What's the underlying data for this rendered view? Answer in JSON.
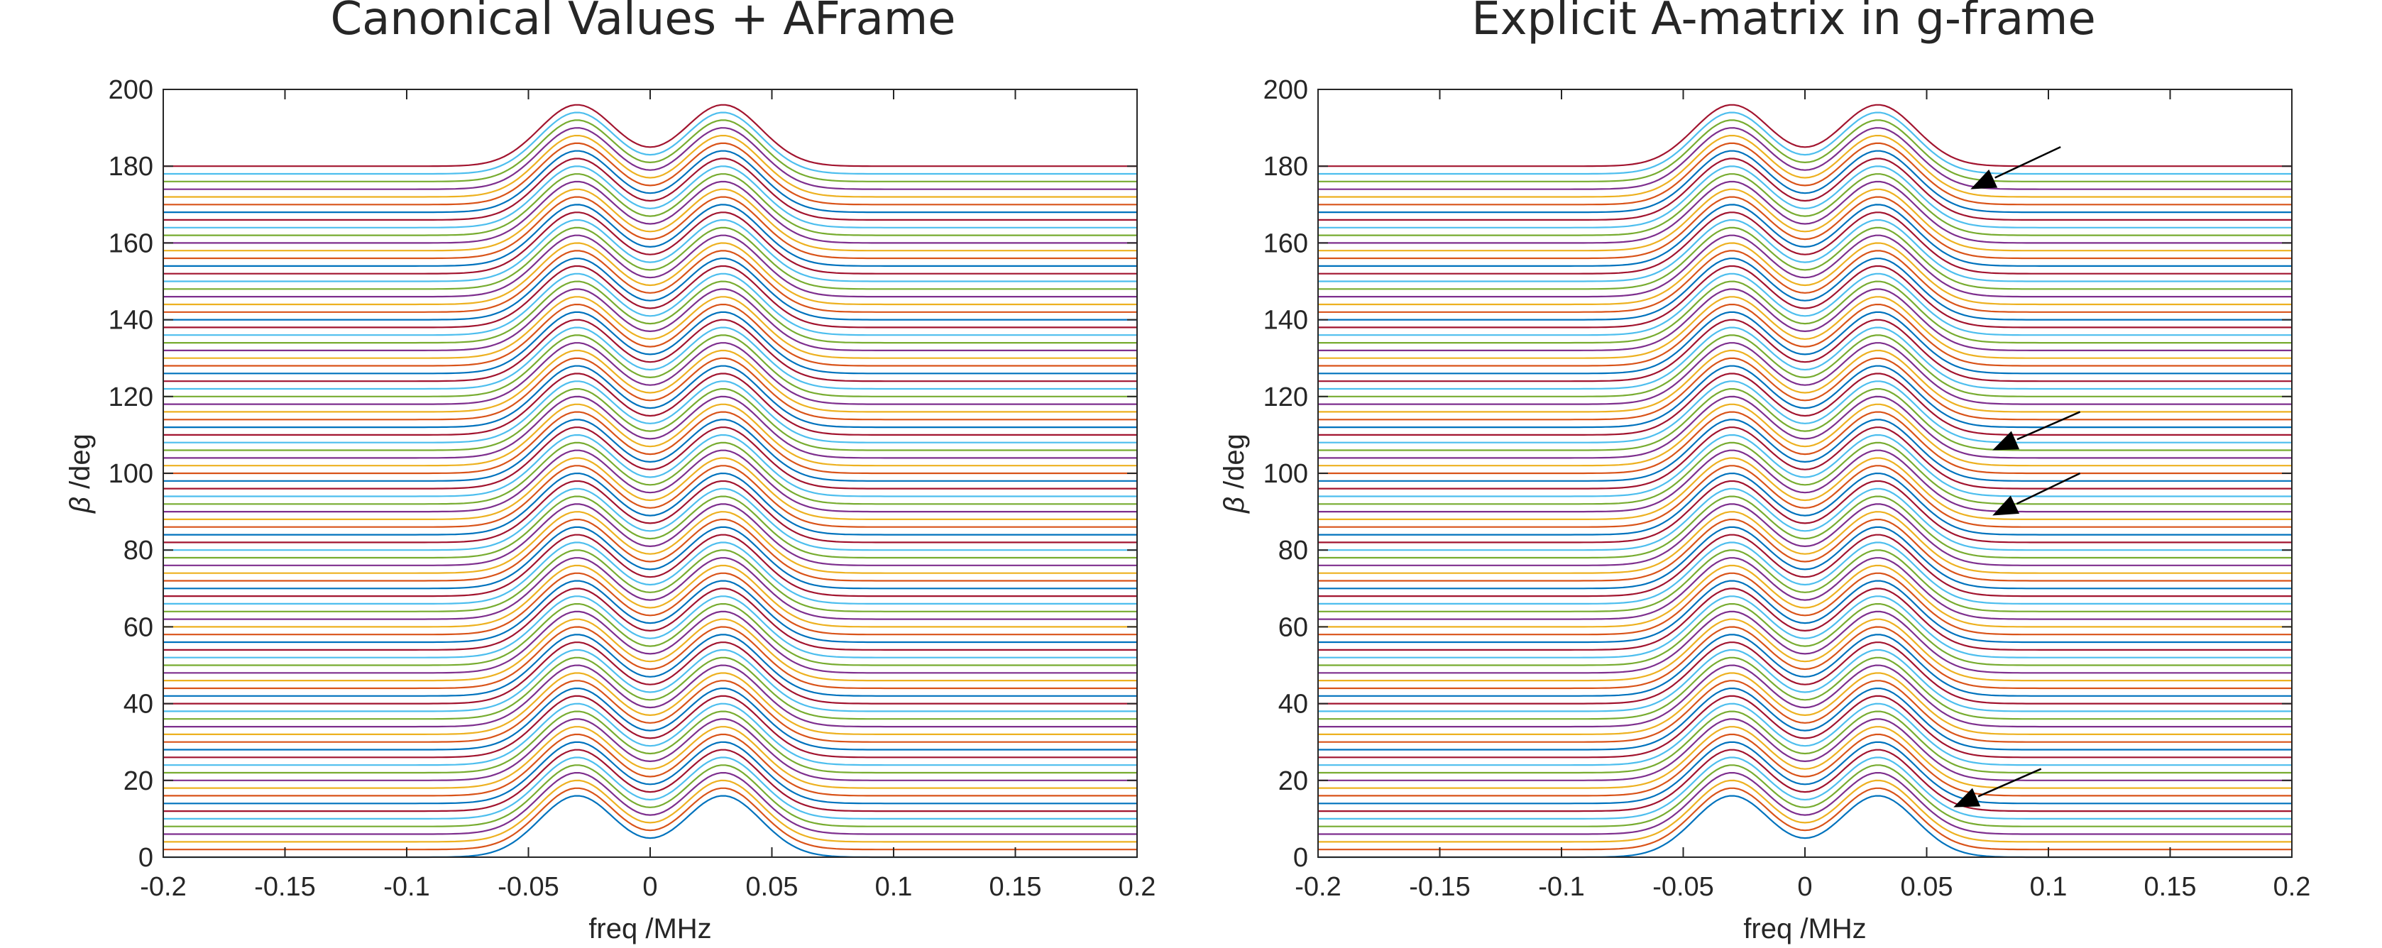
{
  "chart_data": [
    {
      "type": "line",
      "title": "Canonical Values + AFrame",
      "xlabel": "freq /MHz",
      "ylabel_symbol": "β",
      "ylabel_text": " /deg",
      "xlim": [
        -0.2,
        0.2
      ],
      "ylim": [
        0,
        200
      ],
      "xticks": [
        -0.2,
        -0.15,
        -0.1,
        -0.05,
        0,
        0.05,
        0.1,
        0.15,
        0.2
      ],
      "xtick_labels": [
        "-0.2",
        "-0.15",
        "-0.1",
        "-0.05",
        "0",
        "0.05",
        "0.1",
        "0.15",
        "0.2"
      ],
      "yticks": [
        0,
        20,
        40,
        60,
        80,
        100,
        120,
        140,
        160,
        180,
        200
      ],
      "ytick_labels": [
        "0",
        "20",
        "40",
        "60",
        "80",
        "100",
        "120",
        "140",
        "160",
        "180",
        "200"
      ],
      "series_description": "stacked spectra: one trace per beta from 0 to 180 deg in 2 deg steps, baseline offset equal to beta",
      "beta_start": 0,
      "beta_end": 180,
      "beta_step": 2,
      "peak_positions_MHz": [
        -0.03,
        0.03
      ],
      "peak_height": 16,
      "center_dip_height": 8.7,
      "peak_halfwidth_MHz": 0.022,
      "grid": false,
      "legend": "none"
    },
    {
      "type": "line",
      "title": "Explicit A-matrix in g-frame",
      "xlabel": "freq /MHz",
      "ylabel_symbol": "β",
      "ylabel_text": " /deg",
      "xlim": [
        -0.2,
        0.2
      ],
      "ylim": [
        0,
        200
      ],
      "xticks": [
        -0.2,
        -0.15,
        -0.1,
        -0.05,
        0,
        0.05,
        0.1,
        0.15,
        0.2
      ],
      "xtick_labels": [
        "-0.2",
        "-0.15",
        "-0.1",
        "-0.05",
        "0",
        "0.05",
        "0.1",
        "0.15",
        "0.2"
      ],
      "yticks": [
        0,
        20,
        40,
        60,
        80,
        100,
        120,
        140,
        160,
        180,
        200
      ],
      "ytick_labels": [
        "0",
        "20",
        "40",
        "60",
        "80",
        "100",
        "120",
        "140",
        "160",
        "180",
        "200"
      ],
      "series_description": "stacked spectra: one trace per beta from 0 to 180 deg in 2 deg steps, baseline offset equal to beta",
      "beta_start": 0,
      "beta_end": 180,
      "beta_step": 2,
      "peak_positions_MHz": [
        -0.03,
        0.03
      ],
      "peak_height": 16,
      "center_dip_height": 8.7,
      "peak_halfwidth_MHz": 0.022,
      "grid": false,
      "legend": "none",
      "annotations": [
        {
          "type": "arrow",
          "from": [
            0.105,
            185
          ],
          "to": [
            0.068,
            174
          ]
        },
        {
          "type": "arrow",
          "from": [
            0.113,
            116
          ],
          "to": [
            0.077,
            106
          ]
        },
        {
          "type": "arrow",
          "from": [
            0.113,
            100
          ],
          "to": [
            0.077,
            89
          ]
        },
        {
          "type": "arrow",
          "from": [
            0.097,
            23
          ],
          "to": [
            0.061,
            13
          ]
        }
      ]
    }
  ],
  "colors": {
    "series_cycle": [
      "#0072bd",
      "#d95319",
      "#edb120",
      "#7e2f8e",
      "#77ac30",
      "#4dbeee",
      "#a2142f"
    ],
    "axis": "#262626",
    "background": "#ffffff",
    "arrow": "#000000"
  }
}
